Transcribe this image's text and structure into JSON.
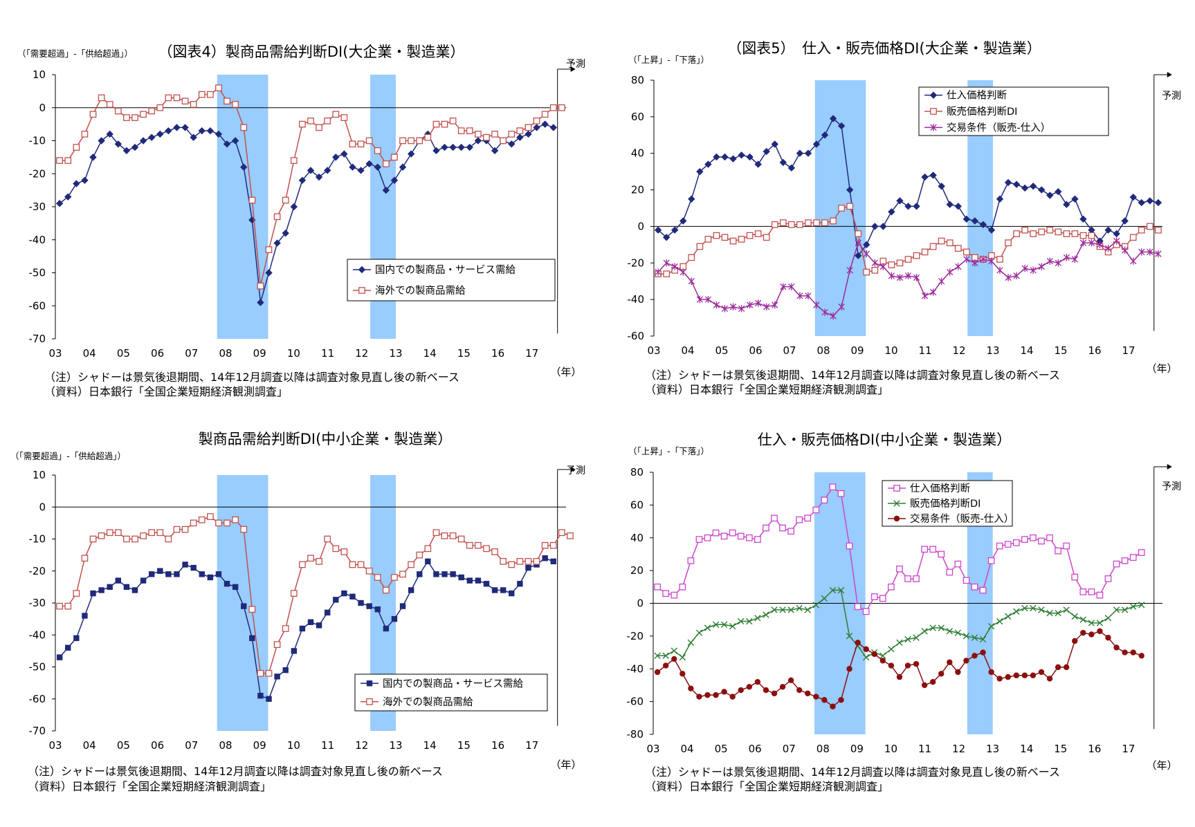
{
  "colors": {
    "shade": "#99ccff",
    "navy": "#1f2a7a",
    "red_open": "#c0504d",
    "purple": "#9c2a9c",
    "magenta": "#cc44cc",
    "green": "#2e7d32",
    "darkred": "#8b0f0f"
  },
  "common": {
    "year_unit": "（年）",
    "forecast": "予測",
    "note1": "（注）シャドーは景気後退期間、14年12月調査以降は調査対象見直し後の新ベース",
    "note2": "（資料）日本銀行「全国企業短期経済観測調査」"
  },
  "chart_data": [
    {
      "type": "line",
      "title": "（図表4）製商品需給判断DI(大企業・製造業）",
      "ylabel": "（「需要超過」-「供給超過」）",
      "ylim": [
        -70,
        10
      ],
      "yticks": [
        10,
        0,
        -10,
        -20,
        -30,
        -40,
        -50,
        -60,
        -70
      ],
      "xlim": [
        2003.0,
        2018.0
      ],
      "x_tick_labels": [
        "03",
        "04",
        "05",
        "06",
        "07",
        "08",
        "09",
        "10",
        "11",
        "12",
        "13",
        "14",
        "15",
        "16",
        "17"
      ],
      "shading": [
        [
          2007.75,
          2009.25
        ],
        [
          2012.25,
          2013.0
        ]
      ],
      "legend_position": "lower-right",
      "series": [
        {
          "name": "国内での製商品・サービス需給",
          "marker": "diamond-filled",
          "color": "#1f2a7a",
          "values": [
            -29,
            -27,
            -23,
            -22,
            -15,
            -10,
            -8,
            -11,
            -13,
            -12,
            -10,
            -9,
            -8,
            -7,
            -6,
            -6,
            -9,
            -7,
            -7,
            -8,
            -11,
            -10,
            -18,
            -34,
            -59,
            -50,
            -41,
            -38,
            -30,
            -22,
            -19,
            -21,
            -19,
            -15,
            -14,
            -18,
            -19,
            -17,
            -18,
            -25,
            -22,
            -18,
            -14,
            -10,
            -8,
            -13,
            -12,
            -12,
            -12,
            -12,
            -10,
            -10,
            -13,
            -10,
            -11,
            -9,
            -8,
            -6,
            -5,
            -6
          ]
        },
        {
          "name": "海外での製商品需給",
          "marker": "square-open",
          "color": "#c0504d",
          "values": [
            -16,
            -16,
            -12,
            -8,
            -2,
            3,
            1,
            -1,
            -3,
            -3,
            -2,
            -1,
            0,
            3,
            3,
            2,
            1,
            4,
            4,
            6,
            2,
            1,
            -6,
            -28,
            -54,
            -43,
            -33,
            -28,
            -16,
            -5,
            -4,
            -6,
            -4,
            -2,
            -3,
            -11,
            -11,
            -10,
            -13,
            -17,
            -15,
            -10,
            -10,
            -10,
            -9,
            -5,
            -5,
            -4,
            -7,
            -7,
            -8,
            -9,
            -8,
            -10,
            -8,
            -7,
            -6,
            -4,
            -2,
            0,
            0
          ]
        }
      ]
    },
    {
      "type": "line",
      "title": "（図表5）　仕入・販売価格DI(大企業・製造業）",
      "ylabel": "（「上昇」-「下落」）",
      "ylim": [
        -60,
        80
      ],
      "yticks": [
        80,
        60,
        40,
        20,
        0,
        -20,
        -40,
        -60
      ],
      "xlim": [
        2003.0,
        2018.0
      ],
      "x_tick_labels": [
        "03",
        "04",
        "05",
        "06",
        "07",
        "08",
        "09",
        "10",
        "11",
        "12",
        "13",
        "14",
        "15",
        "16",
        "17"
      ],
      "shading": [
        [
          2007.75,
          2009.25
        ],
        [
          2012.25,
          2013.0
        ]
      ],
      "legend_position": "top-right",
      "series": [
        {
          "name": "仕入価格判断",
          "marker": "diamond-filled",
          "color": "#1f2a7a",
          "values": [
            -2,
            -6,
            -2,
            3,
            15,
            30,
            34,
            38,
            38,
            37,
            39,
            38,
            34,
            41,
            45,
            35,
            32,
            40,
            40,
            45,
            50,
            59,
            55,
            20,
            -16,
            -10,
            0,
            0,
            8,
            14,
            11,
            11,
            27,
            28,
            22,
            12,
            11,
            4,
            3,
            1,
            -2,
            15,
            24,
            23,
            21,
            22,
            20,
            17,
            19,
            12,
            15,
            4,
            -2,
            -8,
            -2,
            -4,
            3,
            16,
            13,
            14,
            13
          ]
        },
        {
          "name": "販売価格判断DI",
          "marker": "square-open",
          "color": "#c0504d",
          "values": [
            -26,
            -26,
            -24,
            -22,
            -17,
            -11,
            -7,
            -5,
            -6,
            -8,
            -7,
            -5,
            -4,
            -6,
            1,
            2,
            1,
            1,
            2,
            2,
            2,
            3,
            10,
            11,
            -4,
            -25,
            -24,
            -19,
            -21,
            -20,
            -18,
            -16,
            -14,
            -11,
            -8,
            -9,
            -12,
            -14,
            -17,
            -18,
            -16,
            -18,
            -9,
            -4,
            -2,
            -4,
            -3,
            -2,
            -3,
            -4,
            -4,
            -5,
            -5,
            -11,
            -14,
            -10,
            -11,
            -6,
            -2,
            0,
            -2
          ]
        },
        {
          "name": "交易条件（販売-仕入）",
          "marker": "star",
          "color": "#9c2a9c",
          "values": [
            -25,
            -20,
            -22,
            -25,
            -30,
            -40,
            -40,
            -43,
            -45,
            -44,
            -45,
            -43,
            -42,
            -44,
            -43,
            -33,
            -33,
            -38,
            -38,
            -43,
            -47,
            -49,
            -44,
            -24,
            -9,
            -15,
            -20,
            -22,
            -27,
            -28,
            -27,
            -28,
            -38,
            -36,
            -30,
            -25,
            -22,
            -18,
            -20,
            -18,
            -19,
            -24,
            -28,
            -27,
            -23,
            -24,
            -22,
            -19,
            -20,
            -17,
            -18,
            -9,
            -9,
            -10,
            -12,
            -8,
            -13,
            -19,
            -14,
            -14,
            -15
          ]
        }
      ]
    },
    {
      "type": "line",
      "title": "製商品需給判断DI(中小企業・製造業）",
      "ylabel": "（「需要超過」-「供給超過」）",
      "ylim": [
        -70,
        10
      ],
      "yticks": [
        10,
        0,
        -10,
        -20,
        -30,
        -40,
        -50,
        -60,
        -70
      ],
      "xlim": [
        2003.0,
        2018.0
      ],
      "x_tick_labels": [
        "03",
        "04",
        "05",
        "06",
        "07",
        "08",
        "09",
        "10",
        "11",
        "12",
        "13",
        "14",
        "15",
        "16",
        "17"
      ],
      "shading": [
        [
          2007.75,
          2009.25
        ],
        [
          2012.25,
          2013.0
        ]
      ],
      "legend_position": "lower-right",
      "series": [
        {
          "name": "国内での製商品・サービス需給",
          "marker": "square-filled",
          "color": "#1f2a7a",
          "values": [
            -47,
            -44,
            -41,
            -34,
            -27,
            -26,
            -25,
            -23,
            -25,
            -26,
            -23,
            -21,
            -20,
            -21,
            -21,
            -18,
            -19,
            -21,
            -22,
            -21,
            -24,
            -25,
            -31,
            -41,
            -59,
            -60,
            -53,
            -51,
            -45,
            -38,
            -36,
            -37,
            -33,
            -29,
            -27,
            -28,
            -30,
            -31,
            -32,
            -38,
            -35,
            -31,
            -26,
            -21,
            -17,
            -21,
            -21,
            -21,
            -22,
            -23,
            -23,
            -24,
            -26,
            -26,
            -27,
            -24,
            -19,
            -18,
            -16,
            -17
          ]
        },
        {
          "name": "海外での製商品需給",
          "marker": "square-open",
          "color": "#c0504d",
          "values": [
            -31,
            -31,
            -27,
            -16,
            -10,
            -9,
            -8,
            -8,
            -10,
            -10,
            -9,
            -8,
            -8,
            -10,
            -7,
            -7,
            -5,
            -4,
            -3,
            -5,
            -5,
            -4,
            -7,
            -32,
            -52,
            -52,
            -43,
            -38,
            -27,
            -18,
            -16,
            -17,
            -10,
            -13,
            -14,
            -18,
            -18,
            -20,
            -22,
            -26,
            -22,
            -21,
            -18,
            -15,
            -13,
            -8,
            -9,
            -9,
            -10,
            -12,
            -12,
            -13,
            -14,
            -17,
            -18,
            -17,
            -17,
            -17,
            -12,
            -12,
            -8,
            -9
          ]
        }
      ]
    },
    {
      "type": "line",
      "title": "仕入・販売価格DI(中小企業・製造業）",
      "ylabel": "（「上昇」-「下落」）",
      "ylim": [
        -80,
        80
      ],
      "yticks": [
        80,
        60,
        40,
        20,
        0,
        -20,
        -40,
        -60,
        -80
      ],
      "xlim": [
        2003.0,
        2018.0
      ],
      "x_tick_labels": [
        "03",
        "04",
        "05",
        "06",
        "07",
        "08",
        "09",
        "10",
        "11",
        "12",
        "13",
        "14",
        "15",
        "16",
        "17"
      ],
      "shading": [
        [
          2007.75,
          2009.25
        ],
        [
          2012.25,
          2013.0
        ]
      ],
      "legend_position": "top-right",
      "series": [
        {
          "name": "仕入価格判断",
          "marker": "square-open",
          "color": "#cc44cc",
          "values": [
            10,
            6,
            5,
            10,
            26,
            39,
            40,
            43,
            41,
            43,
            41,
            40,
            39,
            46,
            52,
            46,
            44,
            51,
            52,
            57,
            63,
            71,
            67,
            35,
            -2,
            -5,
            4,
            3,
            10,
            21,
            15,
            15,
            33,
            33,
            30,
            19,
            24,
            14,
            10,
            8,
            26,
            35,
            36,
            37,
            39,
            40,
            38,
            40,
            32,
            35,
            16,
            7,
            7,
            5,
            15,
            24,
            26,
            28,
            31
          ]
        },
        {
          "name": "販売価格判断DI",
          "marker": "x",
          "color": "#2e7d32",
          "values": [
            -32,
            -32,
            -29,
            -33,
            -24,
            -18,
            -15,
            -13,
            -13,
            -14,
            -11,
            -11,
            -9,
            -7,
            -4,
            -4,
            -4,
            -3,
            -4,
            -1,
            3,
            8,
            8,
            -20,
            -26,
            -33,
            -30,
            -32,
            -28,
            -24,
            -22,
            -21,
            -17,
            -15,
            -15,
            -17,
            -18,
            -20,
            -21,
            -22,
            -14,
            -11,
            -8,
            -5,
            -3,
            -3,
            -4,
            -6,
            -6,
            -4,
            -8,
            -10,
            -12,
            -12,
            -9,
            -4,
            -4,
            -2,
            -1
          ]
        },
        {
          "name": "交易条件（販売-仕入）",
          "marker": "circle-filled",
          "color": "#8b0f0f",
          "values": [
            -42,
            -38,
            -34,
            -43,
            -52,
            -57,
            -56,
            -56,
            -54,
            -57,
            -53,
            -51,
            -48,
            -53,
            -55,
            -51,
            -47,
            -53,
            -55,
            -57,
            -59,
            -63,
            -59,
            -40,
            -24,
            -28,
            -31,
            -35,
            -38,
            -45,
            -38,
            -37,
            -50,
            -48,
            -43,
            -36,
            -42,
            -35,
            -32,
            -30,
            -42,
            -46,
            -45,
            -44,
            -44,
            -44,
            -42,
            -46,
            -39,
            -39,
            -23,
            -18,
            -19,
            -17,
            -21,
            -27,
            -30,
            -30,
            -32
          ]
        }
      ]
    }
  ]
}
